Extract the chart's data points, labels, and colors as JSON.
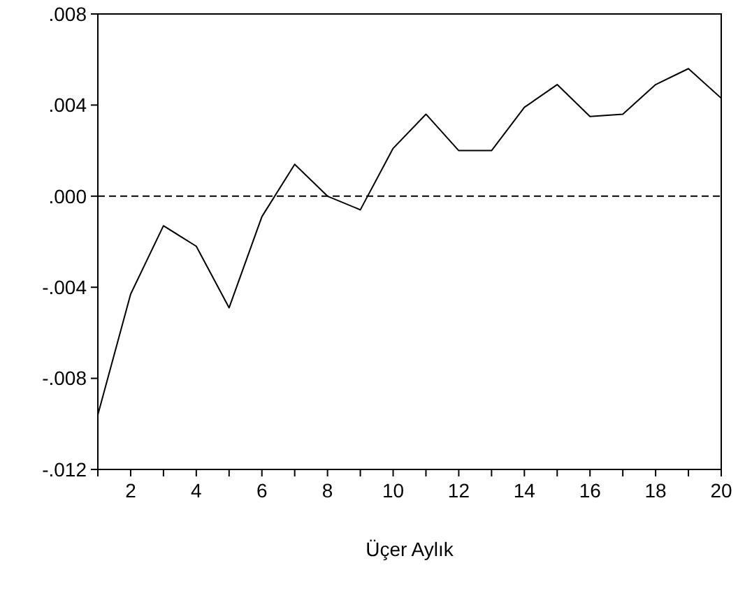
{
  "chart_data": {
    "type": "line",
    "xlabel": "Üçer Aylık",
    "x": [
      1,
      2,
      3,
      4,
      5,
      6,
      7,
      8,
      9,
      10,
      11,
      12,
      13,
      14,
      15,
      16,
      17,
      18,
      19,
      20
    ],
    "series": [
      {
        "color": "#000000",
        "values": [
          -0.0096,
          -0.0043,
          -0.0013,
          -0.0022,
          -0.0049,
          -0.0009,
          0.0014,
          0.0,
          -0.0006,
          0.0021,
          0.0036,
          0.002,
          0.002,
          0.0039,
          0.0049,
          0.0035,
          0.0036,
          0.0049,
          0.0056,
          0.0043
        ]
      }
    ],
    "xlim": [
      1,
      20
    ],
    "xticks": [
      {
        "value": 1,
        "label": null
      },
      2,
      {
        "value": 3,
        "label": null
      },
      4,
      {
        "value": 5,
        "label": null
      },
      6,
      {
        "value": 7,
        "label": null
      },
      8,
      {
        "value": 9,
        "label": null
      },
      10,
      {
        "value": 11,
        "label": null
      },
      12,
      {
        "value": 13,
        "label": null
      },
      14,
      {
        "value": 15,
        "label": null
      },
      16,
      {
        "value": 17,
        "label": null
      },
      18,
      {
        "value": 19,
        "label": null
      },
      20
    ],
    "ylim": [
      -0.012,
      0.008
    ],
    "yticks": [
      {
        "value": -0.012,
        "label": "-.012"
      },
      {
        "value": -0.008,
        "label": "-.008"
      },
      {
        "value": -0.004,
        "label": "-.004"
      },
      {
        "value": 0,
        "label": ".000"
      },
      {
        "value": 0.004,
        "label": ".004"
      },
      {
        "value": 0.008,
        "label": ".008"
      }
    ],
    "ref_lines": [
      {
        "axis": "y",
        "value": 0,
        "line_style": "dashed"
      }
    ],
    "grid": false,
    "marker": "none",
    "line_style": "solid"
  }
}
